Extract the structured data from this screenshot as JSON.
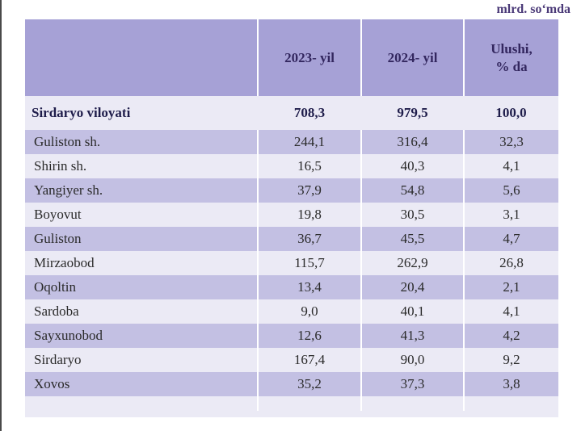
{
  "unit_note": "mlrd. so‘mda",
  "header": {
    "col1": "",
    "col2": "2023- yil",
    "col3": "2024- yil",
    "col4_line1": "Ulushi,",
    "col4_line2": "% da"
  },
  "total": {
    "region": "Sirdaryo viloyati",
    "y2023": "708,3",
    "y2024": "979,5",
    "share": "100,0"
  },
  "rows": [
    {
      "region": "Guliston sh.",
      "y2023": "244,1",
      "y2024": "316,4",
      "share": "32,3"
    },
    {
      "region": "Shirin sh.",
      "y2023": "16,5",
      "y2024": "40,3",
      "share": "4,1"
    },
    {
      "region": "Yangiyer sh.",
      "y2023": "37,9",
      "y2024": "54,8",
      "share": "5,6"
    },
    {
      "region": "Boyovut",
      "y2023": "19,8",
      "y2024": "30,5",
      "share": "3,1"
    },
    {
      "region": "Guliston",
      "y2023": "36,7",
      "y2024": "45,5",
      "share": "4,7"
    },
    {
      "region": "Mirzaobod",
      "y2023": "115,7",
      "y2024": "262,9",
      "share": "26,8"
    },
    {
      "region": "Oqoltin",
      "y2023": "13,4",
      "y2024": "20,4",
      "share": "2,1"
    },
    {
      "region": "Sardoba",
      "y2023": "9,0",
      "y2024": "40,1",
      "share": "4,1"
    },
    {
      "region": "Sayxunobod",
      "y2023": "12,6",
      "y2024": "41,3",
      "share": "4,2"
    },
    {
      "region": "Sirdaryo",
      "y2023": "167,4",
      "y2024": "90,0",
      "share": "9,2"
    },
    {
      "region": "Xovos",
      "y2023": "35,2",
      "y2024": "37,3",
      "share": "3,8"
    }
  ],
  "colors": {
    "header_bg": "#a6a1d6",
    "header_text": "#33275f",
    "row_dark": "#c3c0e3",
    "row_light": "#ebeaf5",
    "unit_text": "#4b3a78"
  }
}
